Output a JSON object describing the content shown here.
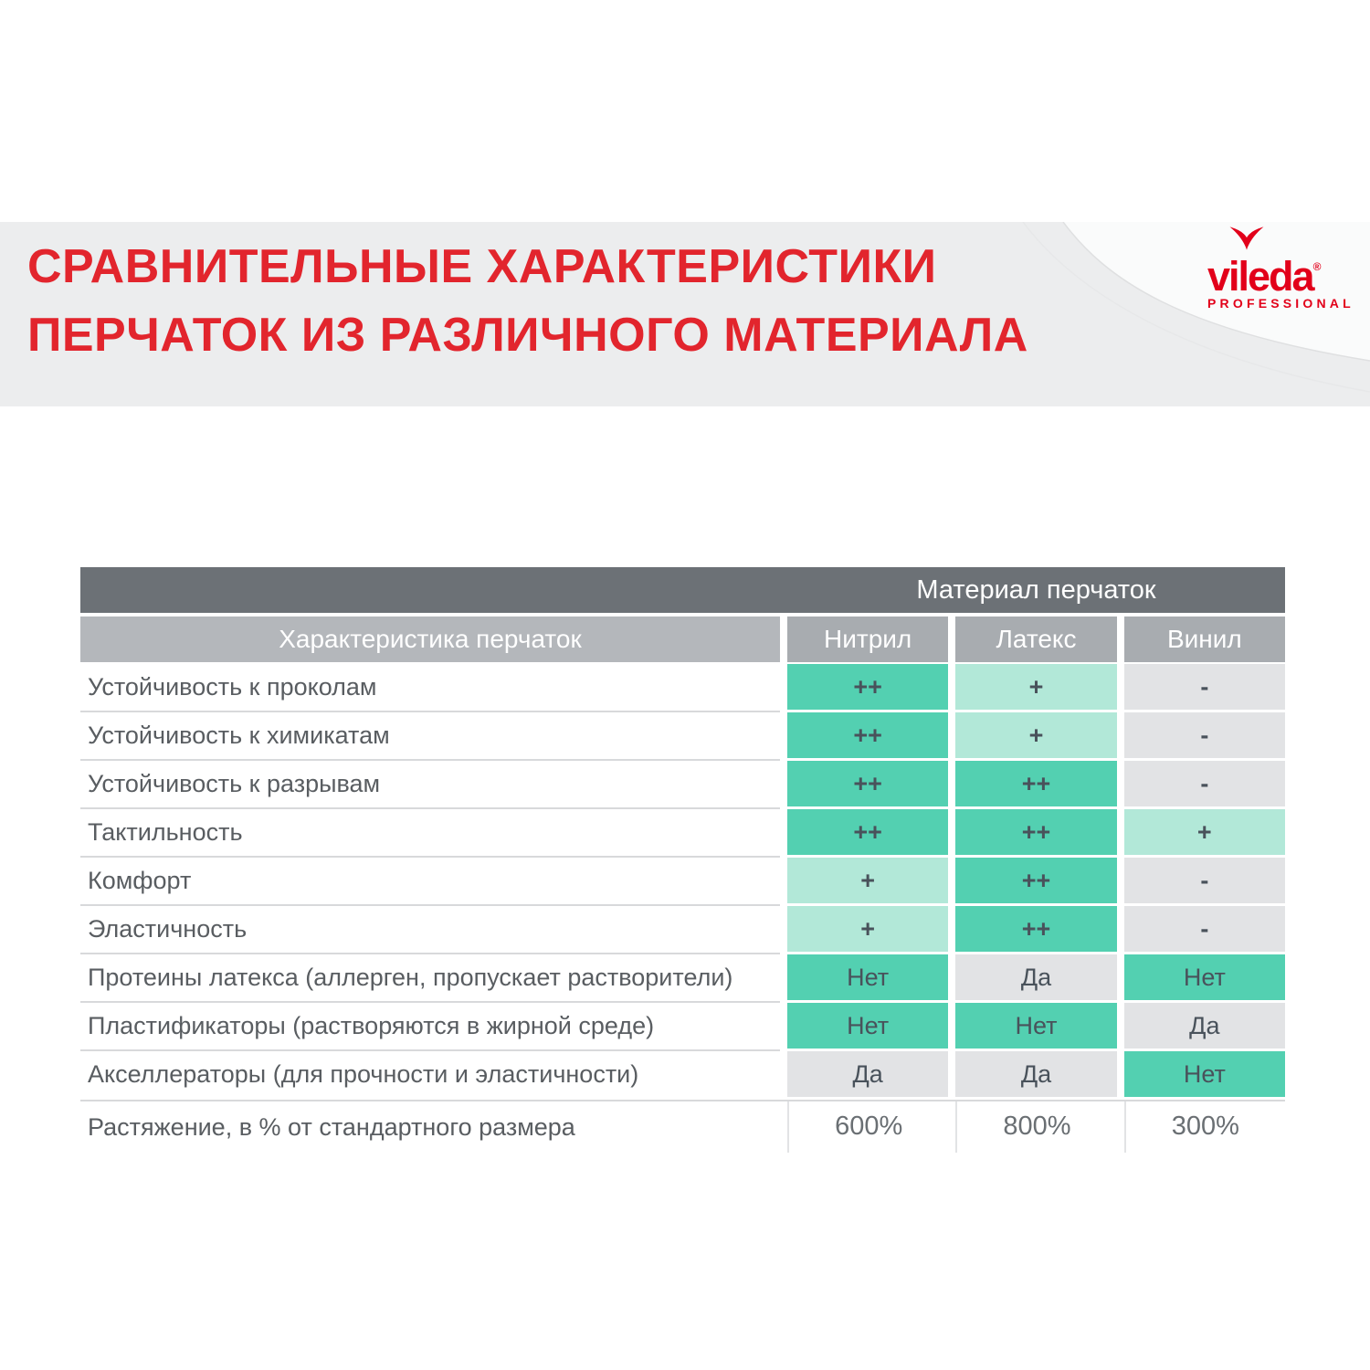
{
  "header": {
    "title_line1": "СРАВНИТЕЛЬНЫЕ ХАРАКТЕРИСТИКИ",
    "title_line2": "ПЕРЧАТОК ИЗ РАЗЛИЧНОГО МАТЕРИАЛА",
    "logo": {
      "brand": "vileda",
      "registered": "®",
      "subtitle": "PROFESSIONAL"
    }
  },
  "table": {
    "group_header": "Материал перчаток",
    "col_headers": {
      "characteristic": "Характеристика перчаток",
      "materials": [
        "Нитрил",
        "Латекс",
        "Винил"
      ]
    },
    "rows": [
      {
        "label": "Устойчивость к проколам",
        "values": [
          {
            "text": "++",
            "style": "pp"
          },
          {
            "text": "+",
            "style": "p"
          },
          {
            "text": "-",
            "style": "minus"
          }
        ]
      },
      {
        "label": "Устойчивость к химикатам",
        "values": [
          {
            "text": "++",
            "style": "pp"
          },
          {
            "text": "+",
            "style": "p"
          },
          {
            "text": "-",
            "style": "minus"
          }
        ]
      },
      {
        "label": "Устойчивость к разрывам",
        "values": [
          {
            "text": "++",
            "style": "pp"
          },
          {
            "text": "++",
            "style": "pp"
          },
          {
            "text": "-",
            "style": "minus"
          }
        ]
      },
      {
        "label": "Тактильность",
        "values": [
          {
            "text": "++",
            "style": "pp"
          },
          {
            "text": "++",
            "style": "pp"
          },
          {
            "text": "+",
            "style": "p"
          }
        ]
      },
      {
        "label": "Комфорт",
        "values": [
          {
            "text": "+",
            "style": "p"
          },
          {
            "text": "++",
            "style": "pp"
          },
          {
            "text": "-",
            "style": "minus"
          }
        ]
      },
      {
        "label": "Эластичность",
        "values": [
          {
            "text": "+",
            "style": "p"
          },
          {
            "text": "++",
            "style": "pp"
          },
          {
            "text": "-",
            "style": "minus"
          }
        ]
      },
      {
        "label": "Протеины латекса (аллерген, пропускает растворители)",
        "values": [
          {
            "text": "Нет",
            "style": "no"
          },
          {
            "text": "Да",
            "style": "yes"
          },
          {
            "text": "Нет",
            "style": "no"
          }
        ]
      },
      {
        "label": "Пластификаторы (растворяются в жирной среде)",
        "values": [
          {
            "text": "Нет",
            "style": "no"
          },
          {
            "text": "Нет",
            "style": "no"
          },
          {
            "text": "Да",
            "style": "yes"
          }
        ]
      },
      {
        "label": "Акселлераторы (для прочности и эластичности)",
        "values": [
          {
            "text": "Да",
            "style": "yes"
          },
          {
            "text": "Да",
            "style": "yes"
          },
          {
            "text": "Нет",
            "style": "no"
          }
        ]
      },
      {
        "label": "Растяжение, в % от стандартного размера",
        "values": [
          {
            "text": "600%",
            "style": "plain"
          },
          {
            "text": "800%",
            "style": "plain"
          },
          {
            "text": "300%",
            "style": "plain"
          }
        ]
      }
    ]
  },
  "colors": {
    "band_bg": "#ecedee",
    "title_red": "#e2252d",
    "brand_red": "#e2001a",
    "header_dark": "#6c7176",
    "header_mid": "#a8acb0",
    "header_light": "#b4b7bb",
    "teal": "#53d0b1",
    "teal_light": "#b2e8d8",
    "cell_gray": "#e2e3e5",
    "cell_text": "#49525b",
    "label_text": "#595d61",
    "plain_text": "#6a6f73",
    "line": "#d8d9db"
  }
}
